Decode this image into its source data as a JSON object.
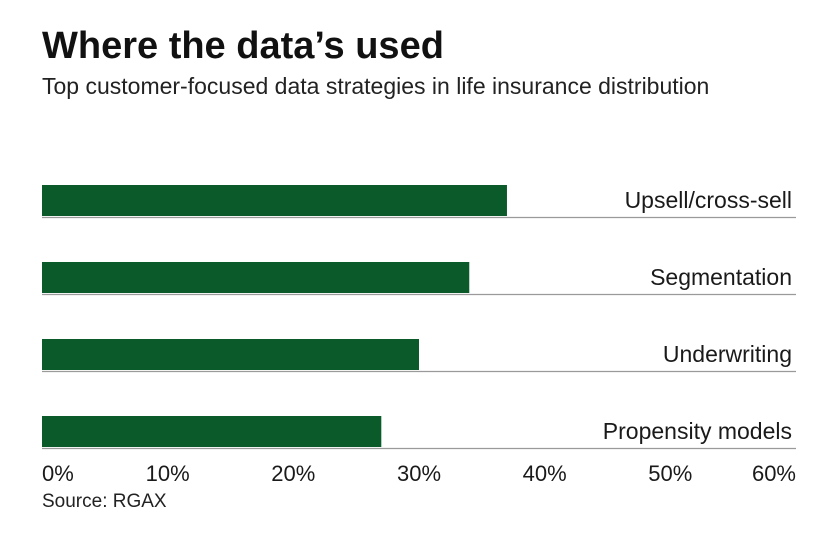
{
  "title": "Where the data’s used",
  "subtitle": "Top customer-focused data strategies in life insurance distribution",
  "source": "Source: RGAX",
  "colors": {
    "bar": "#0b5a2a",
    "baseline": "#9a9a9a"
  },
  "chart_data": {
    "type": "bar",
    "orientation": "horizontal",
    "categories": [
      "Upsell/cross-sell",
      "Segmentation",
      "Underwriting",
      "Propensity models"
    ],
    "values": [
      37,
      34,
      30,
      27
    ],
    "xlim": [
      0,
      60
    ],
    "x_tick_labels": [
      "0%",
      "10%",
      "20%",
      "30%",
      "40%",
      "50%",
      "60%"
    ],
    "grid": false,
    "legend": "none"
  }
}
